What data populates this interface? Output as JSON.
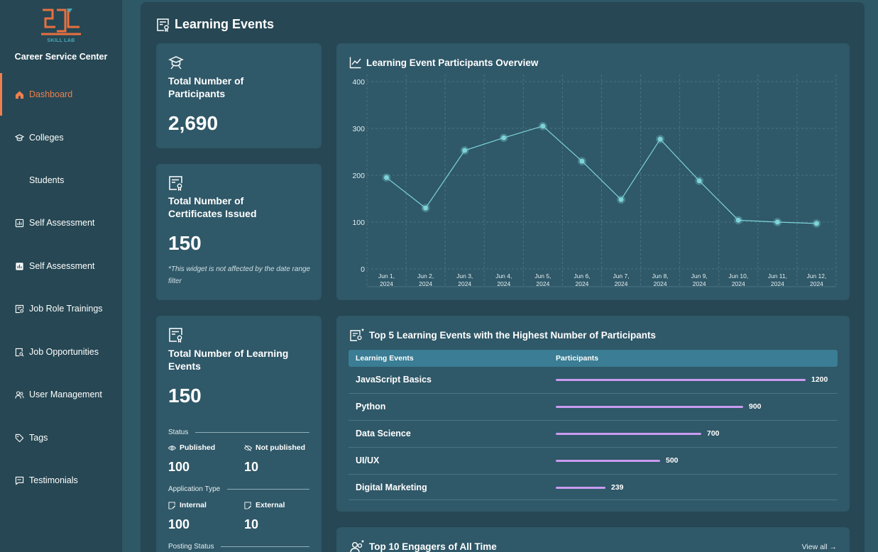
{
  "sidebar": {
    "logo_text": "SKILL LAB",
    "brand": "Career Service Center",
    "items": [
      {
        "label": "Dashboard",
        "icon": "home-icon",
        "active": true
      },
      {
        "label": "Colleges",
        "icon": "graduation-cap-icon"
      },
      {
        "label": "Students",
        "icon": "none"
      },
      {
        "label": "Self Assessment",
        "icon": "chart-box-icon"
      },
      {
        "label": "Self Assessment",
        "icon": "bar-chart-box-icon"
      },
      {
        "label": "Job Role Trainings",
        "icon": "certificate-icon"
      },
      {
        "label": "Job Opportunities",
        "icon": "document-search-icon"
      },
      {
        "label": "User Management",
        "icon": "users-icon"
      },
      {
        "label": "Tags",
        "icon": "tag-icon"
      },
      {
        "label": "Testimonials",
        "icon": "message-quote-icon"
      }
    ]
  },
  "page": {
    "title": "Learning Events"
  },
  "participants_card": {
    "label": "Total Number of Participants",
    "value": "2,690"
  },
  "certificates_card": {
    "label": "Total Number of Certificates Issued",
    "value": "150",
    "note": "*This widget is not affected by the date range filter"
  },
  "events_card": {
    "label": "Total Number of Learning Events",
    "value": "150",
    "status_label": "Status",
    "published_label": "Published",
    "published_value": "100",
    "not_published_label": "Not published",
    "not_published_value": "10",
    "app_type_label": "Application Type",
    "internal_label": "Internal",
    "internal_value": "100",
    "external_label": "External",
    "external_value": "10",
    "posting_status_label": "Posting Status"
  },
  "chart_data": {
    "type": "line",
    "title": "Learning Event Participants Overview",
    "categories": [
      "Jun 1, 2024",
      "Jun 2, 2024",
      "Jun 3, 2024",
      "Jun 4, 2024",
      "Jun 5, 2024",
      "Jun 6, 2024",
      "Jun 7, 2024",
      "Jun 8, 2024",
      "Jun 9, 2024",
      "Jun 10, 2024",
      "Jun 11, 2024",
      "Jun 12, 2024"
    ],
    "values": [
      195,
      130,
      253,
      280,
      305,
      230,
      148,
      277,
      188,
      104,
      100,
      97
    ],
    "ylim": [
      0,
      400
    ],
    "yticks": [
      0,
      100,
      200,
      300,
      400
    ],
    "xlabel": "",
    "ylabel": "",
    "color": "#7dd3d8"
  },
  "top5": {
    "title": "Top 5 Learning Events with the Highest Number of Participants",
    "col_events": "Learning Events",
    "col_participants": "Participants",
    "max": 1200,
    "rows": [
      {
        "name": "JavaScript Basics",
        "value": 1200,
        "label": "1200"
      },
      {
        "name": "Python",
        "value": 900,
        "label": "900"
      },
      {
        "name": "Data Science",
        "value": 700,
        "label": "700"
      },
      {
        "name": "UI/UX",
        "value": 500,
        "label": "500"
      },
      {
        "name": "Digital Marketing",
        "value": 239,
        "label": "239"
      }
    ]
  },
  "engagers": {
    "title": "Top 10 Engagers of All Time",
    "view_all": "View all"
  },
  "colors": {
    "accent": "#f07f4f",
    "bar": "#c99bf0",
    "line": "#7dd3d8"
  }
}
